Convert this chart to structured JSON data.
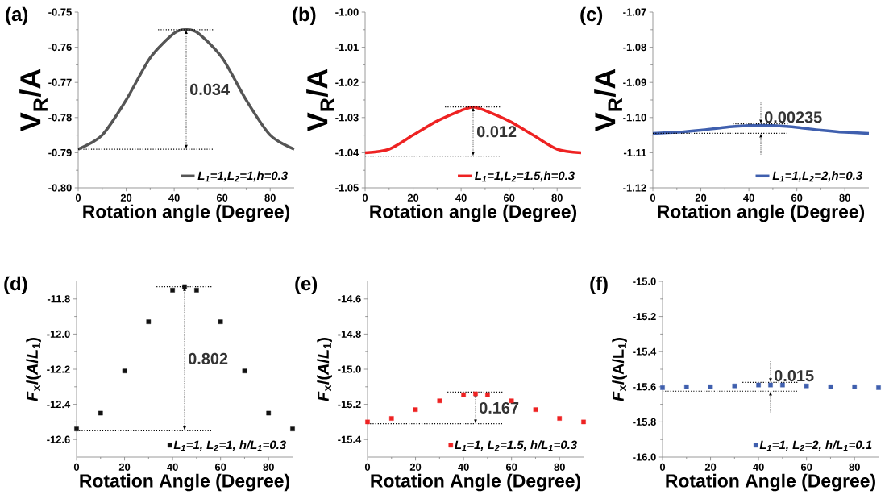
{
  "chart_data": [
    {
      "type": "line",
      "annotations": [
        "(a)",
        "0.034"
      ],
      "xlabel": "Rotation angle (Degree)",
      "ylabel": "V$_{R}$/A",
      "x": [
        0,
        10,
        20,
        30,
        40,
        45,
        50,
        60,
        70,
        80,
        90
      ],
      "series": [
        {
          "name": "L$_{1}$=1,L$_{2}$=1,h=0.3",
          "color": "#555555",
          "values": [
            -0.789,
            -0.785,
            -0.775,
            -0.763,
            -0.756,
            -0.755,
            -0.756,
            -0.763,
            -0.775,
            -0.785,
            -0.789
          ]
        }
      ],
      "xlim": [
        0,
        90
      ],
      "xticks": [
        0,
        20,
        40,
        60,
        80
      ],
      "ylim": [
        -0.8,
        -0.75
      ],
      "yticks": [
        {
          "value": -0.8,
          "label": "-0.80"
        },
        {
          "value": -0.79,
          "label": "-0.79"
        },
        {
          "value": -0.78,
          "label": "-0.78"
        },
        {
          "value": -0.77,
          "label": "-0.77"
        },
        {
          "value": -0.76,
          "label": "-0.76"
        },
        {
          "value": -0.75,
          "label": "-0.75"
        }
      ],
      "legend": "bottom right",
      "ref_lines": [
        {
          "axis": "y",
          "value": -0.789,
          "line_style": "dotted"
        },
        {
          "axis": "y",
          "value": -0.755,
          "line_style": "dotted"
        }
      ]
    },
    {
      "type": "line",
      "annotations": [
        "(b)",
        "0.012"
      ],
      "xlabel": "Rotation angle (Degree)",
      "ylabel": "V$_{R}$/A",
      "x": [
        0,
        10,
        20,
        30,
        40,
        45,
        50,
        60,
        70,
        80,
        90
      ],
      "series": [
        {
          "name": "L$_{1}$=1,L$_{2}$=1.5,h=0.3",
          "color": "#ee2222",
          "values": [
            -1.04,
            -1.039,
            -1.035,
            -1.031,
            -1.028,
            -1.027,
            -1.028,
            -1.031,
            -1.035,
            -1.039,
            -1.04
          ]
        }
      ],
      "xlim": [
        0,
        90
      ],
      "xticks": [
        0,
        20,
        40,
        60,
        80
      ],
      "ylim": [
        -1.05,
        -1.0
      ],
      "yticks": [
        {
          "value": -1.05,
          "label": "-1.05"
        },
        {
          "value": -1.04,
          "label": "-1.04"
        },
        {
          "value": -1.03,
          "label": "-1.03"
        },
        {
          "value": -1.02,
          "label": "-1.02"
        },
        {
          "value": -1.01,
          "label": "-1.01"
        },
        {
          "value": -1.0,
          "label": "-1.00"
        }
      ],
      "legend": "bottom right",
      "ref_lines": [
        {
          "axis": "y",
          "value": -1.041,
          "line_style": "dotted"
        },
        {
          "axis": "y",
          "value": -1.027,
          "line_style": "dotted"
        }
      ]
    },
    {
      "type": "line",
      "annotations": [
        "(c)",
        "0.00235"
      ],
      "xlabel": "Rotation angle (Degree)",
      "ylabel": "V$_{R}$/A",
      "x": [
        0,
        10,
        20,
        30,
        40,
        45,
        50,
        60,
        70,
        80,
        90
      ],
      "series": [
        {
          "name": "L$_{1}$=1,L$_{2}$=2,h=0.3",
          "color": "#3f5fae",
          "values": [
            -1.1045,
            -1.1042,
            -1.1036,
            -1.1028,
            -1.1023,
            -1.1022,
            -1.1023,
            -1.1028,
            -1.1036,
            -1.1042,
            -1.1045
          ]
        }
      ],
      "xlim": [
        0,
        90
      ],
      "xticks": [
        0,
        20,
        40,
        60,
        80
      ],
      "ylim": [
        -1.12,
        -1.07
      ],
      "yticks": [
        {
          "value": -1.12,
          "label": "-1.12"
        },
        {
          "value": -1.11,
          "label": "-1.11"
        },
        {
          "value": -1.1,
          "label": "-1.10"
        },
        {
          "value": -1.09,
          "label": "-1.09"
        },
        {
          "value": -1.08,
          "label": "-1.08"
        },
        {
          "value": -1.07,
          "label": "-1.07"
        }
      ],
      "legend": "bottom right",
      "ref_lines": [
        {
          "axis": "y",
          "value": -1.1045,
          "line_style": "dotted"
        },
        {
          "axis": "y",
          "value": -1.1018,
          "line_style": "dotted"
        }
      ]
    },
    {
      "type": "scatter",
      "marker": "square",
      "annotations": [
        "(d)",
        "0.802"
      ],
      "xlabel": "Rotation Angle (Degree)",
      "ylabel": "*F*$_{x}$/(*A*/*L*$_{1}$)",
      "x": [
        0,
        10,
        20,
        30,
        40,
        45,
        50,
        60,
        70,
        80,
        90
      ],
      "series": [
        {
          "name": "L$_{1}$=1, L$_{2}$=1, h/L$_{1}$=0.3",
          "color": "#111111",
          "values": [
            -12.54,
            -12.45,
            -12.21,
            -11.93,
            -11.75,
            -11.73,
            -11.75,
            -11.93,
            -12.21,
            -12.45,
            -12.54
          ]
        }
      ],
      "xlim": [
        0,
        90
      ],
      "xticks": [
        0,
        20,
        40,
        60,
        80
      ],
      "ylim": [
        -12.7,
        -11.7
      ],
      "yticks": [
        {
          "value": -12.6,
          "label": "-12.6"
        },
        {
          "value": -12.4,
          "label": "-12.4"
        },
        {
          "value": -12.2,
          "label": "-12.2"
        },
        {
          "value": -12.0,
          "label": "-12.0"
        },
        {
          "value": -11.8,
          "label": "-11.8"
        }
      ],
      "legend": "bottom right",
      "ref_lines": [
        {
          "axis": "y",
          "value": -12.55,
          "line_style": "dotted"
        },
        {
          "axis": "y",
          "value": -11.73,
          "line_style": "dotted"
        }
      ]
    },
    {
      "type": "scatter",
      "marker": "square",
      "annotations": [
        "(e)",
        "0.167"
      ],
      "xlabel": "Rotation Angle (Degree)",
      "ylabel": "*F*$_{x}$/(*A*/*L*$_{1}$)",
      "x": [
        0,
        10,
        20,
        30,
        40,
        45,
        50,
        60,
        70,
        80,
        90
      ],
      "series": [
        {
          "name": "L$_{1}$=1, L$_{2}$=1.5, h/L$_{1}$=0.3",
          "color": "#ee2222",
          "values": [
            -15.3,
            -15.28,
            -15.23,
            -15.18,
            -15.145,
            -15.14,
            -15.145,
            -15.18,
            -15.23,
            -15.28,
            -15.3
          ]
        }
      ],
      "xlim": [
        0,
        90
      ],
      "xticks": [
        0,
        20,
        40,
        60,
        80
      ],
      "ylim": [
        -15.5,
        -14.5
      ],
      "yticks": [
        {
          "value": -15.4,
          "label": "-15.4"
        },
        {
          "value": -15.2,
          "label": "-15.2"
        },
        {
          "value": -15.0,
          "label": "-15.0"
        },
        {
          "value": -14.8,
          "label": "-14.8"
        },
        {
          "value": -14.6,
          "label": "-14.6"
        }
      ],
      "legend": "bottom right",
      "ref_lines": [
        {
          "axis": "y",
          "value": -15.31,
          "line_style": "dotted"
        },
        {
          "axis": "y",
          "value": -15.13,
          "line_style": "dotted"
        }
      ]
    },
    {
      "type": "scatter",
      "marker": "square",
      "annotations": [
        "(f)",
        "0.015"
      ],
      "xlabel": "Rotation Angle (Degree)",
      "ylabel": "*F*$_{x}$/(A/L$_{1}$)",
      "x": [
        0,
        10,
        20,
        30,
        40,
        45,
        50,
        60,
        70,
        80,
        90
      ],
      "series": [
        {
          "name": "L$_{1}$=1, L$_{2}$=2, h/L$_{1}$=0.1",
          "color": "#3f5fae",
          "values": [
            -15.605,
            -15.6,
            -15.6,
            -15.595,
            -15.59,
            -15.59,
            -15.59,
            -15.595,
            -15.6,
            -15.6,
            -15.605
          ]
        }
      ],
      "xlim": [
        0,
        90
      ],
      "xticks": [
        0,
        20,
        40,
        60,
        80
      ],
      "ylim": [
        -16.0,
        -15.0
      ],
      "yticks": [
        {
          "value": -16.0,
          "label": "-16.0"
        },
        {
          "value": -15.8,
          "label": "-15.8"
        },
        {
          "value": -15.6,
          "label": "-15.6"
        },
        {
          "value": -15.4,
          "label": "-15.4"
        },
        {
          "value": -15.2,
          "label": "-15.2"
        },
        {
          "value": -15.0,
          "label": "-15.0"
        }
      ],
      "legend": "bottom right",
      "ref_lines": [
        {
          "axis": "y",
          "value": -15.625,
          "line_style": "dotted"
        },
        {
          "axis": "y",
          "value": -15.575,
          "line_style": "dotted"
        }
      ]
    }
  ]
}
